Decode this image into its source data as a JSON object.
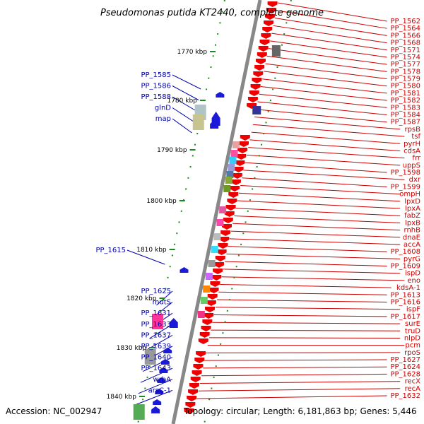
{
  "title": "Pseudomonas putida KT2440, complete genome",
  "accession": "Accession: NC_002947",
  "topology": "Topology: circular; Length: 6,181,863 bp; Genes: 5,446",
  "colors": {
    "forward": "#ee0000",
    "reverse": "#1a1ad8",
    "label_forward": "#cc0000",
    "label_reverse": "#0000aa",
    "axis": "#888888",
    "tick": "#1a8a1a"
  },
  "kbp_ticks": [
    "1770 kbp",
    "1780 kbp",
    "1790 kbp",
    "1800 kbp",
    "1810 kbp",
    "1820 kbp",
    "1830 kbp",
    "1840 kbp"
  ],
  "right_labels": [
    "PP_1562",
    "PP_1564",
    "PP_1566",
    "PP_1568",
    "PP_1571",
    "PP_1574",
    "PP_1577",
    "PP_1578",
    "PP_1579",
    "PP_1580",
    "PP_1581",
    "PP_1582",
    "PP_1583",
    "PP_1584",
    "PP_1587",
    "rpsB",
    "tsf",
    "pyrH",
    "cdsA",
    "frr",
    "uppS",
    "PP_1598",
    "dxr",
    "PP_1599",
    "ompH",
    "lpxD",
    "lpxA",
    "fabZ",
    "lpxB",
    "rnhB",
    "dnaE",
    "accA",
    "PP_1608",
    "pyrG",
    "PP_1609",
    "ispD",
    "eno",
    "kdsA-1",
    "PP_1613",
    "PP_1616",
    "ispF",
    "PP_1617",
    "surE",
    "truD",
    "nlpD",
    "pcm",
    "rpoS",
    "PP_1627",
    "PP_1624",
    "PP_1628",
    "recX",
    "recA",
    "PP_1632"
  ],
  "left_labels": [
    "PP_1585",
    "PP_1586",
    "PP_1588",
    "glnD",
    "map",
    "PP_1615",
    "PP_1625",
    "mutS",
    "PP_1631",
    "PP_1633",
    "PP_1637",
    "PP_1639",
    "PP_1640",
    "PP_1643",
    "wrbA",
    "arsC-1"
  ]
}
